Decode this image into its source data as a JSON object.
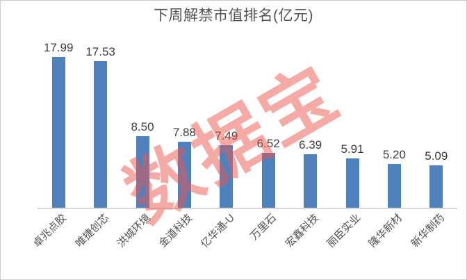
{
  "chart_data": {
    "type": "bar",
    "title": "下周解禁市值排名(亿元)",
    "unit": "亿元",
    "categories": [
      "卓兆点胶",
      "唯捷创芯",
      "洪城环境",
      "金道科技",
      "亿华通-U",
      "万里石",
      "宏鑫科技",
      "丽臣实业",
      "隆华新材",
      "新华制药"
    ],
    "values": [
      17.99,
      17.53,
      8.5,
      7.88,
      7.49,
      6.52,
      6.39,
      5.91,
      5.2,
      5.09
    ],
    "xlabel": "",
    "ylabel": "",
    "grid": false,
    "legend": false,
    "y_axis_visible": false,
    "value_labels_shown": true,
    "x_label_rotation_deg": 45,
    "bar_color": "#4f81bd",
    "axis_line_color": "#d9d9d9",
    "title_color": "#545454",
    "value_label_color": "#3d3d3d",
    "watermark": {
      "text": "数据宝",
      "color": "rgba(235, 85, 78, 0.5)",
      "rotation_deg": -30
    }
  }
}
